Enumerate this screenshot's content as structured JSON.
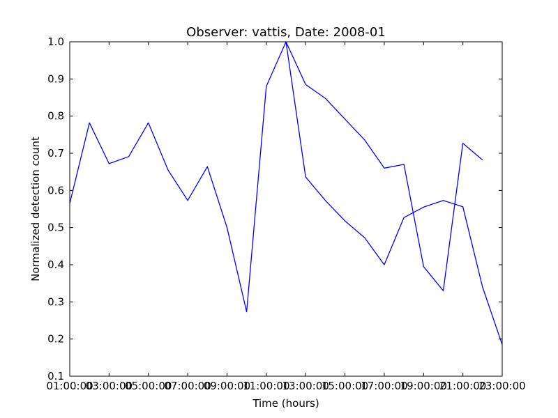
{
  "chart_data": {
    "type": "line",
    "title": "Observer: vattis, Date: 2008-01",
    "xlabel": "Time (hours)",
    "ylabel": "Normalized detection count",
    "x_ticks": [
      "01:00:00",
      "03:00:00",
      "05:00:00",
      "07:00:00",
      "09:00:00",
      "11:00:00",
      "13:00:00",
      "15:00:00",
      "17:00:00",
      "19:00:00",
      "21:00:00",
      "23:00:00"
    ],
    "y_ticks": [
      "0.1",
      "0.2",
      "0.3",
      "0.4",
      "0.5",
      "0.6",
      "0.7",
      "0.8",
      "0.9",
      "1.0"
    ],
    "ylim": [
      0.1,
      1.0
    ],
    "grid": false,
    "line_color": "#0000ff",
    "series": [
      {
        "x": [
          "12:00:00",
          "13:00:00",
          "14:00:00",
          "15:00:00",
          "16:00:00",
          "17:00:00",
          "18:00:00",
          "19:00:00",
          "20:00:00",
          "21:00:00",
          "22:00:00"
        ],
        "values": [
          1.0,
          0.885,
          0.848,
          0.792,
          0.736,
          0.66,
          0.67,
          0.395,
          0.33,
          0.727,
          0.682
        ]
      },
      {
        "x": [
          "01:00:00",
          "02:00:00",
          "03:00:00",
          "04:00:00",
          "05:00:00",
          "06:00:00",
          "07:00:00",
          "08:00:00",
          "09:00:00",
          "10:00:00",
          "11:00:00",
          "12:00:00",
          "13:00:00",
          "14:00:00",
          "15:00:00",
          "16:00:00",
          "17:00:00",
          "18:00:00",
          "19:00:00",
          "20:00:00",
          "21:00:00",
          "22:00:00",
          "23:00:00"
        ],
        "values": [
          0.565,
          0.782,
          0.672,
          0.691,
          0.782,
          0.655,
          0.573,
          0.664,
          0.5,
          0.273,
          0.88,
          1.0,
          0.636,
          0.573,
          0.518,
          0.473,
          0.4,
          0.527,
          0.555,
          0.573,
          0.556,
          0.34,
          0.185
        ]
      }
    ]
  }
}
